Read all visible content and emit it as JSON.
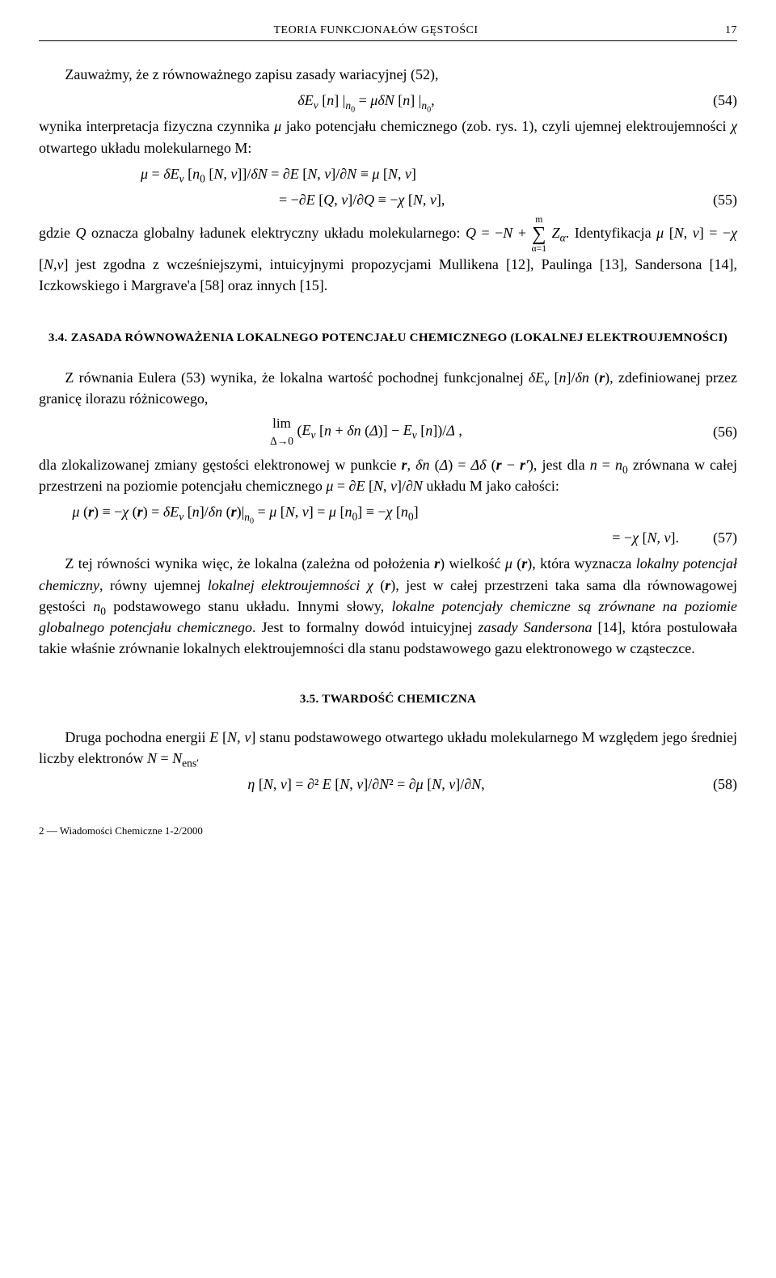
{
  "header": {
    "title": "TEORIA FUNKCJONAŁÓW GĘSTOŚCI",
    "page": "17"
  },
  "p1": "Zauważmy, że z równoważnego zapisu zasady wariacyjnej (52),",
  "eq54": {
    "body": "δE_v [n] |_{n₀} = μδN [n] |_{n₀},",
    "num": "(54)"
  },
  "p2": "wynika interpretacja fizyczna czynnika μ jako potencjału chemicznego (zob. rys. 1), czyli ujemnej elektroujemności χ otwartego układu molekularnego M:",
  "eq55a": "μ = δE_v [n₀ [N, v]]/δN = ∂E [N, v]/∂N ≡ μ [N, v]",
  "eq55b": {
    "body": "= −∂E [Q, v]/∂Q ≡ −χ [N, v],",
    "num": "(55)"
  },
  "p3a": "gdzie Q oznacza globalny ładunek elektryczny układu molekularnego: Q = −N + ",
  "p3sumTop": "m",
  "p3sumBot": "α=1",
  "p3b": " Z_α. Identyfikacja μ [N, v] = −χ [N,v] jest zgodna z wcześniejszymi, intuicyjnymi propozycjami Mullikena [12], Paulinga [13], Sandersona [14], Iczkowskiego i Margrave'a [58] oraz innych [15].",
  "h34": "3.4. ZASADA RÓWNOWAŻENIA LOKALNEGO POTENCJAŁU CHEMICZNEGO (LOKALNEJ ELEKTROUJEMNOŚCI)",
  "p4": "Z równania Eulera (53) wynika, że lokalna wartość pochodnej funkcjonalnej δE_v [n]/δn (r), zdefiniowanej przez granicę ilorazu różnicowego,",
  "eq56": {
    "limTop": "lim",
    "limBot": "Δ→0",
    "body": "(E_v [n + δn (Δ)] − E_v [n])/Δ ,",
    "num": "(56)"
  },
  "p5": "dla zlokalizowanej zmiany gęstości elektronowej w punkcie r, δn (Δ) = Δδ (r − r′), jest dla n = n₀ zrównana w całej przestrzeni na poziomie potencjału chemicznego μ = ∂E [N, v]/∂N układu M jako całości:",
  "eq57a": "μ (r) ≡ −χ (r) = δE_v [n]/δn (r)|_{n₀} = μ [N, v] = μ [n₀] ≡ −χ [n₀]",
  "eq57b": {
    "body": "= −χ [N, v].",
    "num": "(57)"
  },
  "p6": "Z tej równości wynika więc, że lokalna (zależna od położenia r) wielkość μ (r), która wyznacza lokalny potencjał chemiczny, równy ujemnej lokalnej elektroujemności χ (r), jest w całej przestrzeni taka sama dla równowagowej gęstości n₀ podstawowego stanu układu. Innymi słowy, lokalne potencjały chemiczne są zrównane na poziomie globalnego potencjału chemicznego. Jest to formalny dowód intuicyjnej zasady Sandersona [14], która postulowała takie właśnie zrównanie lokalnych elektroujemności dla stanu podstawowego gazu elektronowego w cząsteczce.",
  "h35": "3.5. TWARDOŚĆ CHEMICZNA",
  "p7": "Druga pochodna energii E [N, v] stanu podstawowego otwartego układu molekularnego M względem jego średniej liczby elektronów N = N_ens′",
  "eq58": {
    "body": "η [N, v] = ∂² E [N, v]/∂N² = ∂μ [N, v]/∂N,",
    "num": "(58)"
  },
  "footer": "2 — Wiadomości Chemiczne 1-2/2000"
}
